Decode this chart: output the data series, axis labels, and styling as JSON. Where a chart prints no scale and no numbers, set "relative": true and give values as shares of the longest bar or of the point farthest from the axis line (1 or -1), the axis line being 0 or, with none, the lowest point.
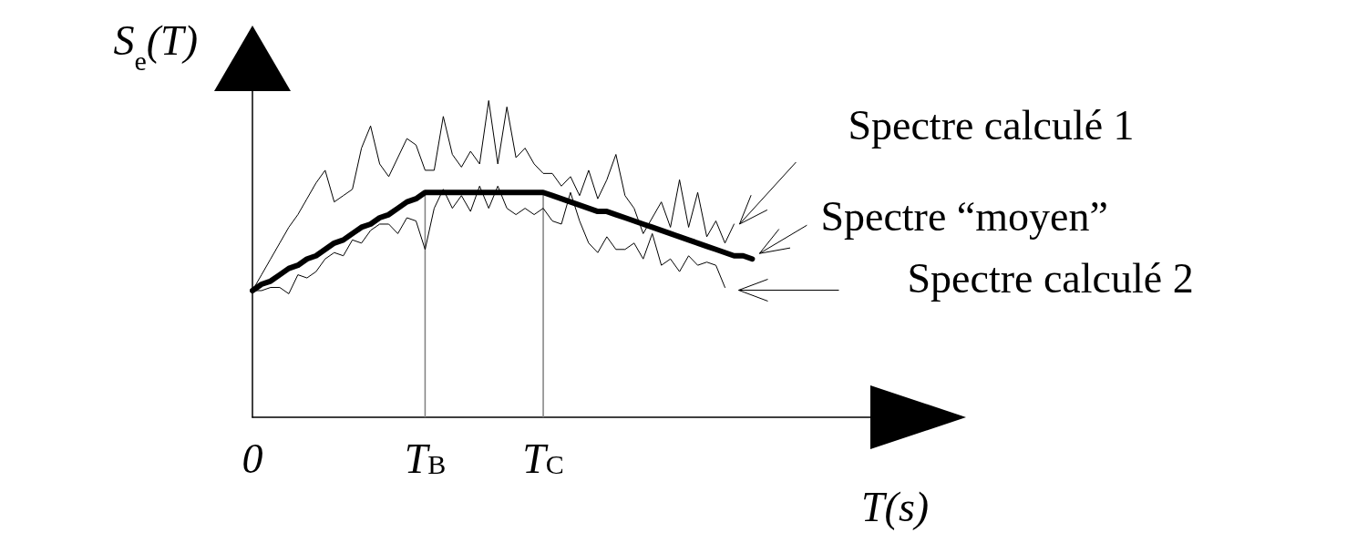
{
  "chart_data": {
    "type": "line",
    "relative": true,
    "xlabel": "T(s)",
    "ylabel": "S$_{e}$(T)",
    "categories": [
      "0",
      null,
      null,
      null,
      null,
      null,
      null,
      null,
      null,
      null,
      null,
      null,
      null,
      null,
      null,
      null,
      null,
      null,
      null,
      "T$_{B}$",
      null,
      null,
      null,
      null,
      null,
      null,
      null,
      null,
      null,
      null,
      null,
      null,
      "T$_{C}$",
      null,
      null,
      null,
      null,
      null,
      null,
      null,
      null,
      null,
      null,
      null,
      null,
      null,
      null,
      null,
      null,
      null,
      null,
      null,
      null,
      null,
      null,
      null,
      null,
      null,
      null,
      null,
      null,
      null,
      null,
      null,
      null,
      null,
      null,
      null,
      null
    ],
    "grid": false,
    "legend": "right",
    "marker": "none",
    "line_style": "solid",
    "ref_lines": [
      {
        "axis": "x",
        "value": "T$_{B}$",
        "color": "#808080"
      },
      {
        "axis": "x",
        "value": "T$_{C}$",
        "color": "#808080"
      }
    ],
    "series": [
      {
        "name": "Spectre calculé 1",
        "color": "#000000",
        "values": [
          0.4,
          0.45,
          0.5,
          0.55,
          0.6,
          0.64,
          0.69,
          0.74,
          0.78,
          0.68,
          0.7,
          0.72,
          0.85,
          0.92,
          0.8,
          0.76,
          0.82,
          0.88,
          0.86,
          0.78,
          0.78,
          0.95,
          0.83,
          0.79,
          0.84,
          0.8,
          1.0,
          0.8,
          0.98,
          0.82,
          0.85,
          0.8,
          0.77,
          0.77,
          0.73,
          0.76,
          0.7,
          0.78,
          0.69,
          0.75,
          0.83,
          0.7,
          0.66,
          0.58,
          0.63,
          0.68,
          0.6,
          0.75,
          0.6,
          0.71,
          0.57,
          0.62,
          0.55,
          0.61,
          null,
          null,
          null,
          null,
          null,
          null,
          null,
          null,
          null,
          null,
          null,
          null,
          null,
          null,
          null
        ]
      },
      {
        "name": "Spectre “moyen”",
        "color": "#000000",
        "values": [
          0.4,
          0.42,
          0.43,
          0.45,
          0.47,
          0.48,
          0.5,
          0.51,
          0.53,
          0.55,
          0.56,
          0.58,
          0.6,
          0.61,
          0.63,
          0.64,
          0.66,
          0.68,
          0.69,
          0.71,
          0.71,
          0.71,
          0.71,
          0.71,
          0.71,
          0.71,
          0.71,
          0.71,
          0.71,
          0.71,
          0.71,
          0.71,
          0.71,
          0.7,
          0.69,
          0.68,
          0.67,
          0.66,
          0.65,
          0.65,
          0.64,
          0.63,
          0.62,
          0.61,
          0.6,
          0.59,
          0.58,
          0.57,
          0.56,
          0.55,
          0.54,
          0.53,
          0.52,
          0.51,
          0.51,
          0.5,
          null,
          null,
          null,
          null,
          null,
          null,
          null,
          null,
          null,
          null,
          null,
          null,
          null
        ]
      },
      {
        "name": "Spectre calculé 2",
        "color": "#000000",
        "values": [
          0.4,
          0.4,
          0.41,
          0.41,
          0.39,
          0.45,
          0.44,
          0.46,
          0.5,
          0.52,
          0.51,
          0.56,
          0.55,
          0.59,
          0.61,
          0.61,
          0.58,
          0.63,
          0.62,
          0.53,
          0.66,
          0.72,
          0.66,
          0.7,
          0.65,
          0.73,
          0.66,
          0.73,
          0.66,
          0.64,
          0.66,
          0.64,
          0.66,
          0.62,
          0.61,
          0.71,
          0.62,
          0.55,
          0.52,
          0.57,
          0.53,
          0.53,
          0.55,
          0.5,
          0.58,
          0.48,
          0.5,
          0.46,
          0.51,
          0.48,
          0.49,
          0.48,
          0.41,
          null,
          null,
          null,
          null,
          null,
          null,
          null,
          null,
          null,
          null,
          null,
          null,
          null,
          null,
          null,
          null
        ]
      }
    ]
  }
}
